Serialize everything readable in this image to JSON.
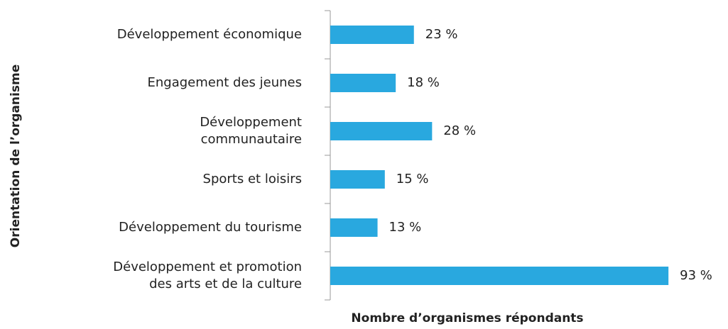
{
  "chart_data": {
    "type": "barh",
    "xlabel": "Nombre d’organismes répondants",
    "ylabel": "Orientation  de  l’organisme",
    "categories": [
      "Développement économique",
      "Engagement des jeunes",
      "Développement\ncommunautaire",
      "Sports et loisirs",
      "Développement du tourisme",
      "Développement et promotion\ndes arts et de la culture"
    ],
    "values": [
      23,
      18,
      28,
      15,
      13,
      93
    ],
    "value_labels": [
      "23 %",
      "18 %",
      "28 %",
      "15 %",
      "13 %",
      "93 %"
    ],
    "color": "#29a8df",
    "xlim": [
      0,
      100
    ]
  }
}
